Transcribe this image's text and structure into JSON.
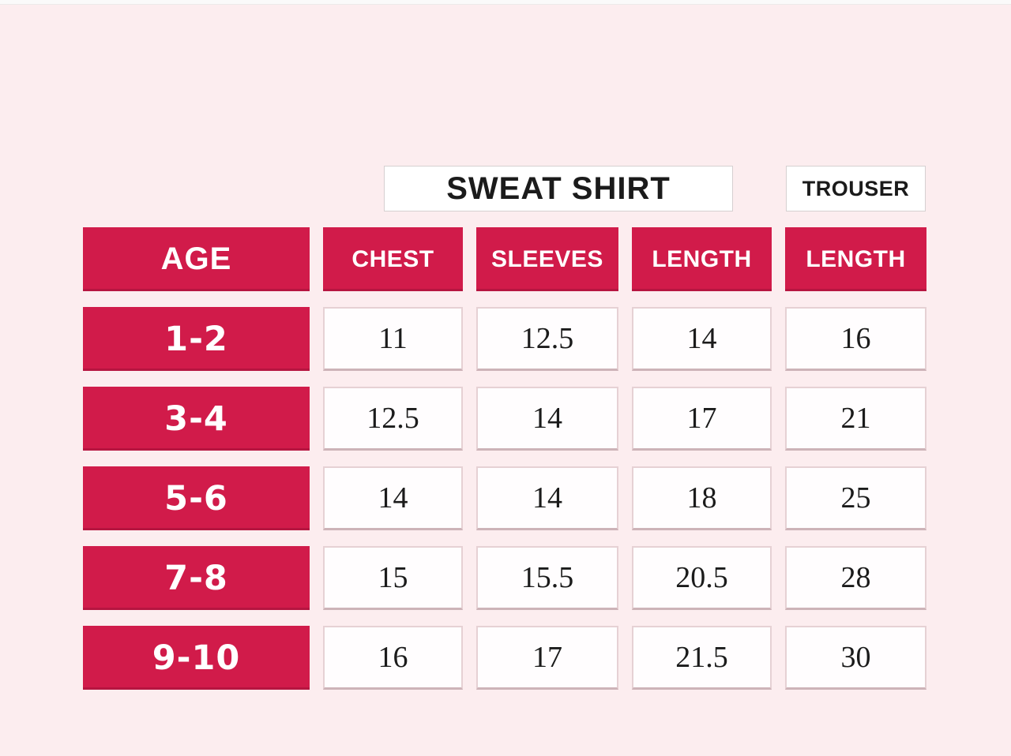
{
  "colors": {
    "accent": "#d11b4a",
    "background": "#fcedef",
    "cell_border": "#e6d1d4",
    "cell_border_bottom": "#cdb3b8",
    "box_border": "#d6d0d1",
    "text_dark": "#1b1b1b"
  },
  "chart_data": {
    "type": "table",
    "row_header_label": "AGE",
    "group_headers": [
      {
        "label": "SWEAT SHIRT",
        "span": 3
      },
      {
        "label": "TROUSER",
        "span": 1
      }
    ],
    "columns": [
      "CHEST",
      "SLEEVES",
      "LENGTH",
      "LENGTH"
    ],
    "rows": [
      {
        "age": "1-2",
        "values": [
          "11",
          "12.5",
          "14",
          "16"
        ]
      },
      {
        "age": "3-4",
        "values": [
          "12.5",
          "14",
          "17",
          "21"
        ]
      },
      {
        "age": "5-6",
        "values": [
          "14",
          "14",
          "18",
          "25"
        ]
      },
      {
        "age": "7-8",
        "values": [
          "15",
          "15.5",
          "20.5",
          "28"
        ]
      },
      {
        "age": "9-10",
        "values": [
          "16",
          "17",
          "21.5",
          "30"
        ]
      }
    ]
  }
}
